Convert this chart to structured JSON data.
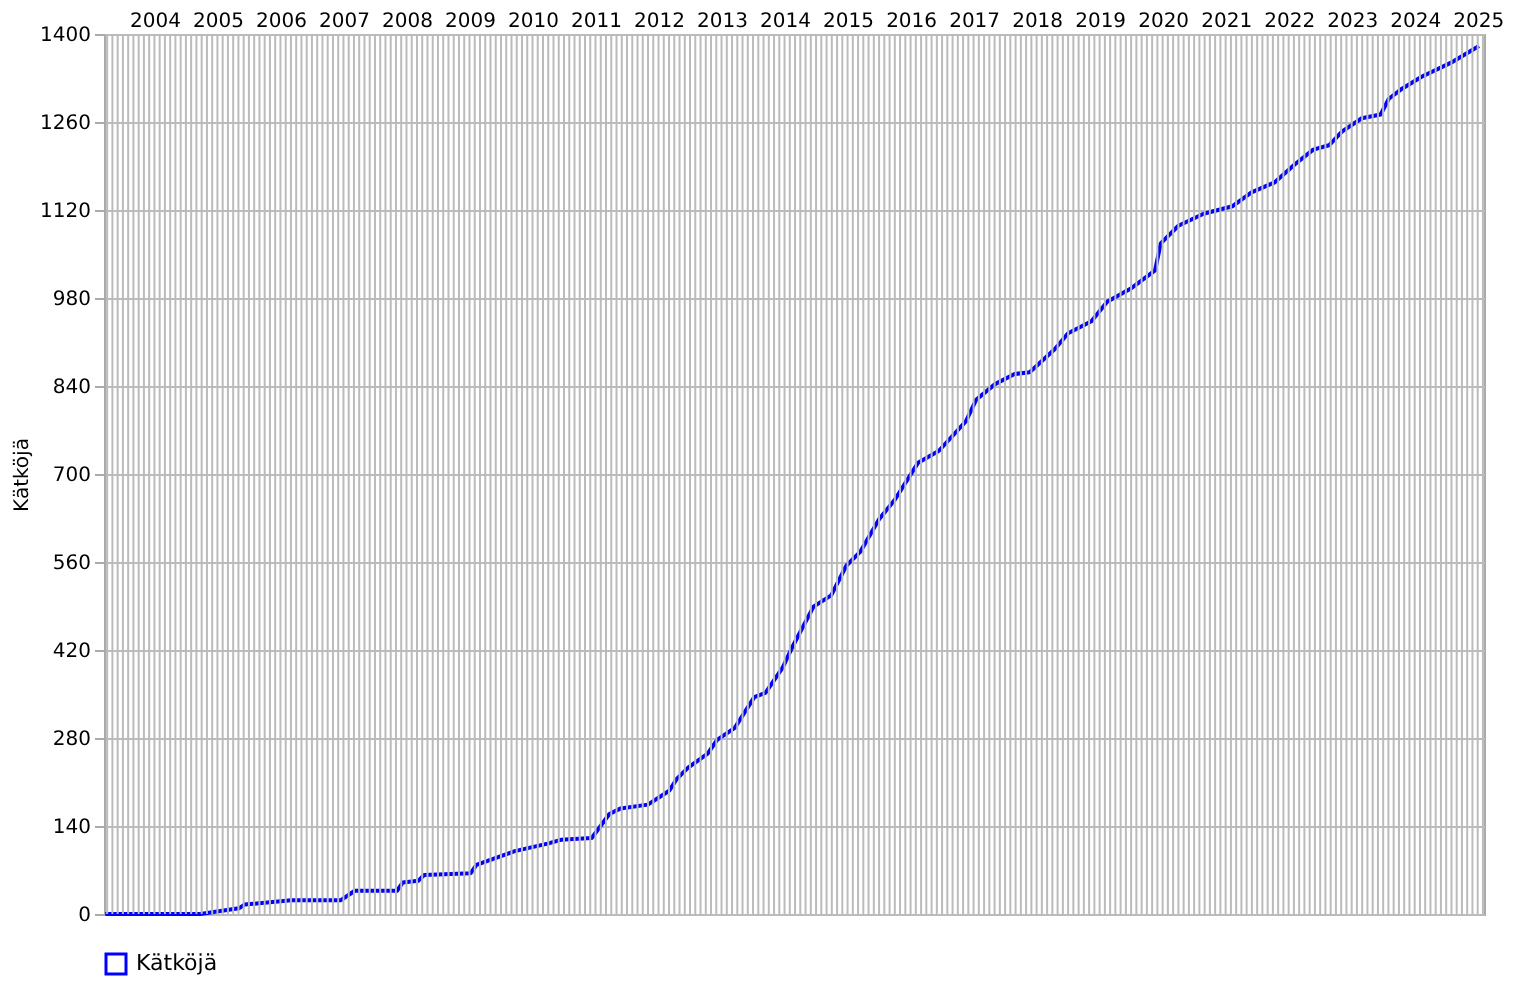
{
  "chart_data": {
    "type": "line",
    "ylabel": "Kätköjä",
    "xlim": [
      2003.7,
      2025.6
    ],
    "ylim": [
      0,
      1400
    ],
    "xticks": [
      {
        "value": 2004.5,
        "label": "2004"
      },
      {
        "value": 2005.5,
        "label": "2005"
      },
      {
        "value": 2006.5,
        "label": "2006"
      },
      {
        "value": 2007.5,
        "label": "2007"
      },
      {
        "value": 2008.5,
        "label": "2008"
      },
      {
        "value": 2009.5,
        "label": "2009"
      },
      {
        "value": 2010.5,
        "label": "2010"
      },
      {
        "value": 2011.5,
        "label": "2011"
      },
      {
        "value": 2012.5,
        "label": "2012"
      },
      {
        "value": 2013.5,
        "label": "2013"
      },
      {
        "value": 2014.5,
        "label": "2014"
      },
      {
        "value": 2015.5,
        "label": "2015"
      },
      {
        "value": 2016.5,
        "label": "2016"
      },
      {
        "value": 2017.5,
        "label": "2017"
      },
      {
        "value": 2018.5,
        "label": "2018"
      },
      {
        "value": 2019.5,
        "label": "2019"
      },
      {
        "value": 2020.5,
        "label": "2020"
      },
      {
        "value": 2021.5,
        "label": "2021"
      },
      {
        "value": 2022.5,
        "label": "2022"
      },
      {
        "value": 2023.5,
        "label": "2023"
      },
      {
        "value": 2024.5,
        "label": "2024"
      },
      {
        "value": 2025.5,
        "label": "2025"
      }
    ],
    "yticks": [
      0,
      140,
      280,
      420,
      560,
      700,
      840,
      980,
      1120,
      1260,
      1400
    ],
    "grid": true,
    "legend": "bottom left",
    "marker": "none",
    "line_style": "solid",
    "series": [
      {
        "name": "Kätköjä",
        "color": "#0000ff",
        "x": [
          2003.72,
          2005.23,
          2005.84,
          2005.93,
          2006.67,
          2007.46,
          2007.68,
          2008.35,
          2008.44,
          2008.69,
          2008.78,
          2009.52,
          2009.61,
          2010.22,
          2010.74,
          2010.95,
          2011.44,
          2011.72,
          2011.9,
          2012.33,
          2012.67,
          2012.79,
          2012.97,
          2013.28,
          2013.43,
          2013.71,
          2014.02,
          2014.2,
          2014.47,
          2014.63,
          2014.96,
          2015.24,
          2015.48,
          2015.7,
          2016.0,
          2016.25,
          2016.62,
          2016.95,
          2017.38,
          2017.54,
          2017.84,
          2018.15,
          2018.39,
          2018.79,
          2019.0,
          2019.37,
          2019.62,
          2020.01,
          2020.38,
          2020.47,
          2020.75,
          2021.15,
          2021.61,
          2021.91,
          2022.28,
          2022.59,
          2022.89,
          2023.14,
          2023.35,
          2023.66,
          2023.96,
          2024.09,
          2024.3,
          2024.61,
          2025.07,
          2025.52
        ],
        "values": [
          0,
          0,
          9,
          15,
          22,
          22,
          37,
          37,
          50,
          53,
          62,
          65,
          78,
          100,
          112,
          118,
          121,
          159,
          168,
          174,
          196,
          215,
          233,
          255,
          277,
          296,
          345,
          352,
          392,
          426,
          489,
          507,
          554,
          576,
          628,
          659,
          718,
          737,
          784,
          818,
          843,
          859,
          862,
          899,
          924,
          943,
          974,
          996,
          1024,
          1067,
          1095,
          1114,
          1126,
          1148,
          1164,
          1192,
          1216,
          1223,
          1245,
          1266,
          1272,
          1297,
          1313,
          1332,
          1354,
          1381
        ]
      }
    ]
  }
}
